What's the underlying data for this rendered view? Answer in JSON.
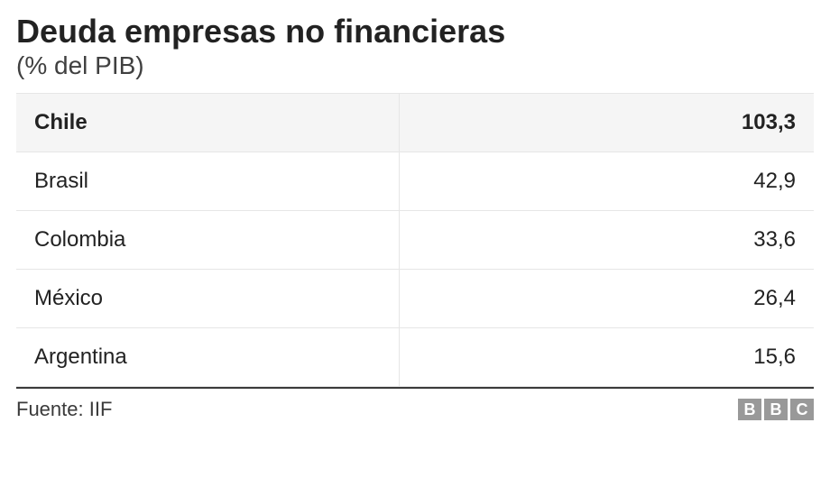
{
  "title": "Deuda empresas no financieras",
  "subtitle": "(% del PIB)",
  "table": {
    "type": "table",
    "rows": [
      {
        "country": "Chile",
        "value": "103,3",
        "is_header": true
      },
      {
        "country": "Brasil",
        "value": "42,9",
        "is_header": false
      },
      {
        "country": "Colombia",
        "value": "33,6",
        "is_header": false
      },
      {
        "country": "México",
        "value": "26,4",
        "is_header": false
      },
      {
        "country": "Argentina",
        "value": "15,6",
        "is_header": false
      }
    ],
    "header_background": "#f5f5f5",
    "row_background": "#ffffff",
    "border_color": "#e6e6e6",
    "footer_rule_color": "#3a3a3a",
    "country_fontsize": 24,
    "value_fontsize": 24,
    "header_fontweight": 700,
    "row_fontweight": 400,
    "country_align": "left",
    "value_align": "right"
  },
  "source_label": "Fuente: IIF",
  "logo": {
    "letters": [
      "B",
      "B",
      "C"
    ],
    "block_bg": "#999999",
    "block_fg": "#ffffff"
  },
  "colors": {
    "background": "#ffffff",
    "title_color": "#222222",
    "subtitle_color": "#404040",
    "text_color": "#222222"
  },
  "typography": {
    "title_fontsize": 36,
    "title_fontweight": 700,
    "subtitle_fontsize": 28,
    "subtitle_fontweight": 400,
    "source_fontsize": 22,
    "font_family": "Helvetica, Arial, sans-serif"
  }
}
